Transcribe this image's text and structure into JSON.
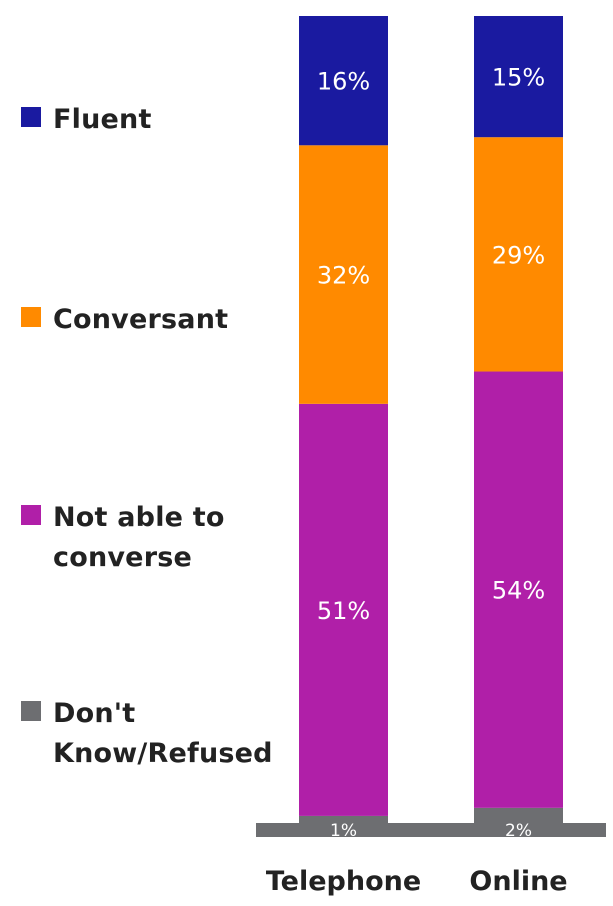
{
  "chart_data": {
    "type": "bar",
    "stacked": true,
    "categories": [
      "Telephone",
      "Online"
    ],
    "series": [
      {
        "name": "Don't\nKnow/Refused",
        "values": [
          1,
          2
        ],
        "labels": [
          "1%",
          "2%"
        ],
        "color": "#6d6e71"
      },
      {
        "name": "Not able to\nconverse",
        "values": [
          51,
          54
        ],
        "labels": [
          "51%",
          "54%"
        ],
        "color": "#b01fa8"
      },
      {
        "name": "Conversant",
        "values": [
          32,
          29
        ],
        "labels": [
          "32%",
          "29%"
        ],
        "color": "#ff8a00"
      },
      {
        "name": "Fluent",
        "values": [
          16,
          15
        ],
        "labels": [
          "16%",
          "15%"
        ],
        "color": "#1a1aa0"
      }
    ],
    "legend_position": "left",
    "legend_order": [
      "Fluent",
      "Conversant",
      "Not able to\nconverse",
      "Don't\nKnow/Refused"
    ],
    "ylim": [
      0,
      100
    ],
    "grid": false,
    "baseline_color": "#6d6e71"
  }
}
